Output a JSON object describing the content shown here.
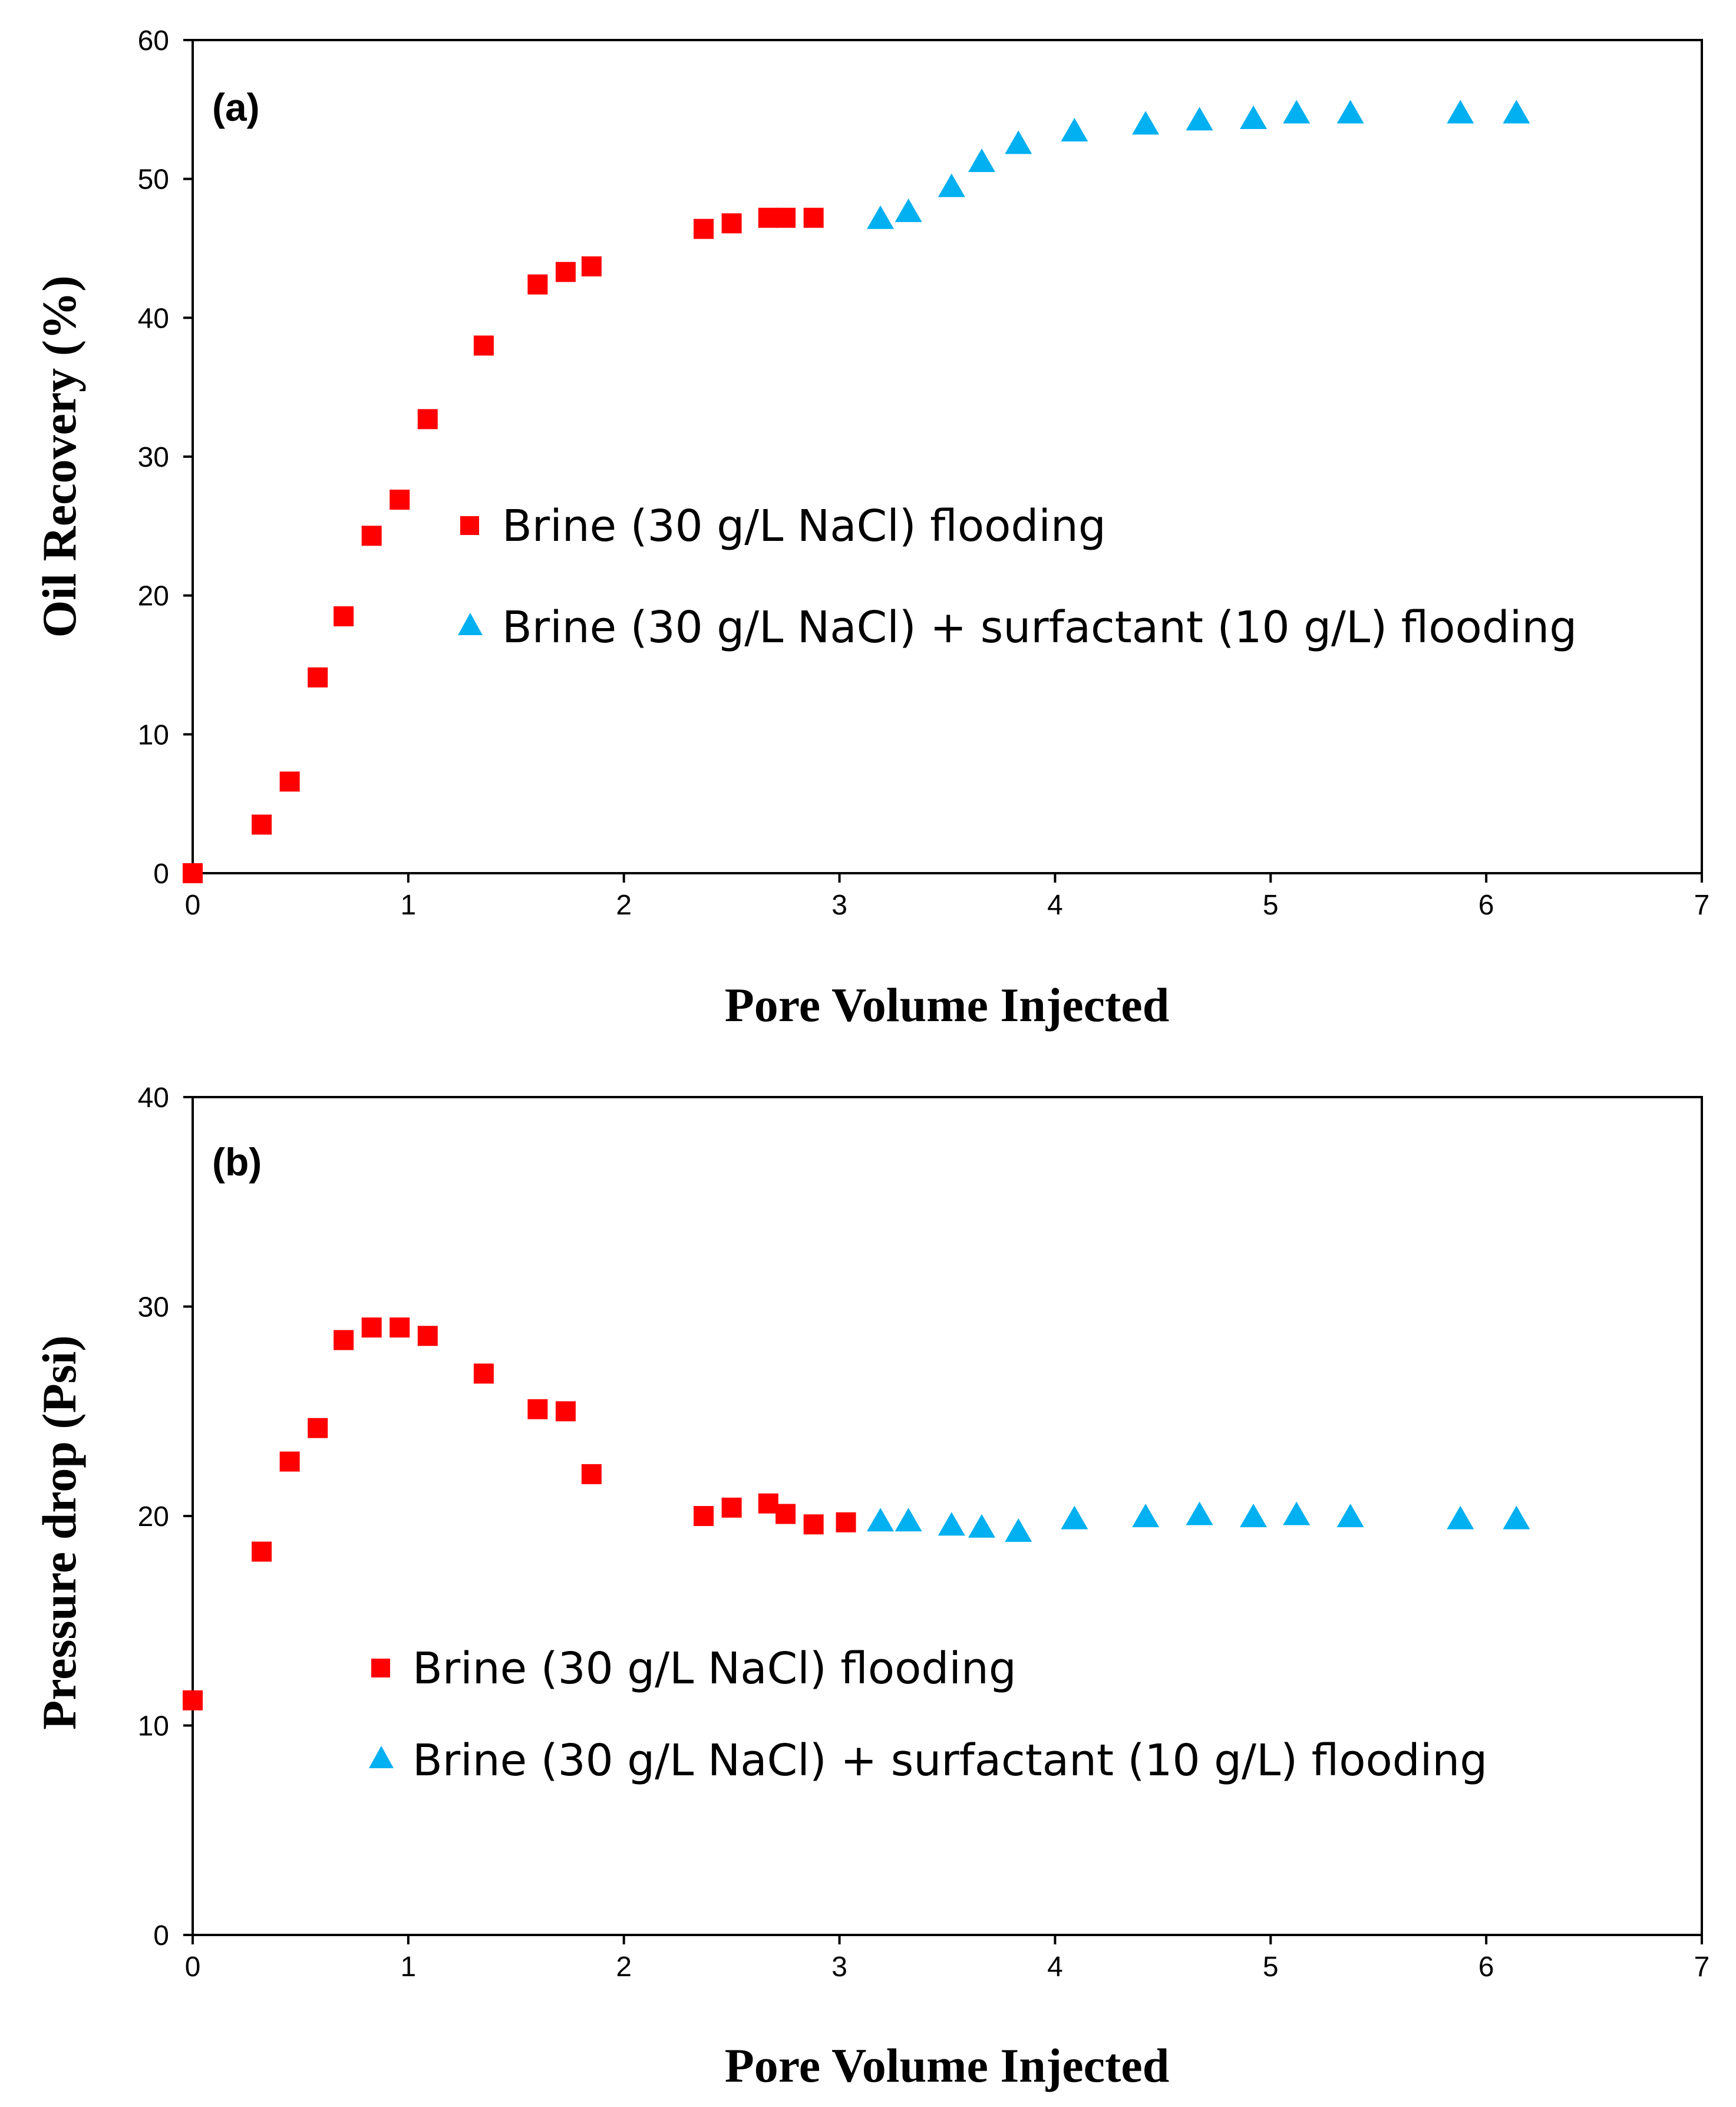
{
  "chart_data": [
    {
      "type": "scatter",
      "panel_label": "(a)",
      "xlabel": "Pore Volume Injected",
      "ylabel": "Oil Recovery (%)",
      "xlim": [
        0,
        7
      ],
      "ylim": [
        0,
        60
      ],
      "x_ticks": [
        0,
        1,
        2,
        3,
        4,
        5,
        6,
        7
      ],
      "y_ticks": [
        0,
        10,
        20,
        30,
        40,
        50,
        60
      ],
      "grid": false,
      "legend_position": "center",
      "series": [
        {
          "name": "Brine (30 g/L NaCl) flooding",
          "marker": "square",
          "color": "#ff0000",
          "x": [
            0,
            0.32,
            0.45,
            0.58,
            0.7,
            0.83,
            0.96,
            1.09,
            1.35,
            1.6,
            1.73,
            1.85,
            2.37,
            2.5,
            2.67,
            2.75,
            2.88
          ],
          "y": [
            0,
            3.5,
            6.6,
            14.1,
            18.5,
            24.3,
            26.9,
            32.7,
            38.0,
            42.4,
            43.3,
            43.7,
            46.4,
            46.8,
            47.2,
            47.2,
            47.2
          ]
        },
        {
          "name": "Brine (30 g/L NaCl) + surfactant (10 g/L) flooding",
          "marker": "triangle",
          "color": "#00b0f0",
          "x": [
            3.19,
            3.32,
            3.52,
            3.66,
            3.83,
            4.09,
            4.42,
            4.67,
            4.92,
            5.12,
            5.37,
            5.88,
            6.14
          ],
          "y": [
            47.2,
            47.7,
            49.5,
            51.3,
            52.6,
            53.5,
            54.0,
            54.3,
            54.4,
            54.8,
            54.8,
            54.8,
            54.8
          ]
        }
      ]
    },
    {
      "type": "scatter",
      "panel_label": "(b)",
      "xlabel": "Pore Volume Injected",
      "ylabel": "Pressure drop (Psi)",
      "xlim": [
        0,
        7
      ],
      "ylim": [
        0,
        40
      ],
      "x_ticks": [
        0,
        1,
        2,
        3,
        4,
        5,
        6,
        7
      ],
      "y_ticks": [
        0,
        10,
        20,
        30,
        40
      ],
      "grid": false,
      "legend_position": "bottom-center",
      "series": [
        {
          "name": "Brine (30 g/L NaCl) flooding",
          "marker": "square",
          "color": "#ff0000",
          "x": [
            0,
            0.32,
            0.45,
            0.58,
            0.7,
            0.83,
            0.96,
            1.09,
            1.35,
            1.6,
            1.73,
            1.85,
            2.37,
            2.5,
            2.67,
            2.75,
            2.88,
            3.03
          ],
          "y": [
            11.2,
            18.3,
            22.6,
            24.2,
            28.4,
            29.0,
            29.0,
            28.6,
            26.8,
            25.1,
            25.0,
            22.0,
            20.0,
            20.4,
            20.6,
            20.1,
            19.6,
            19.7
          ]
        },
        {
          "name": "Brine (30 g/L NaCl) + surfactant (10 g/L) flooding",
          "marker": "triangle",
          "color": "#00b0f0",
          "x": [
            3.19,
            3.32,
            3.52,
            3.66,
            3.83,
            4.09,
            4.42,
            4.67,
            4.92,
            5.12,
            5.37,
            5.88,
            6.14
          ],
          "y": [
            19.8,
            19.8,
            19.6,
            19.5,
            19.3,
            19.9,
            20.0,
            20.1,
            20.0,
            20.1,
            20.0,
            19.9,
            19.9
          ]
        }
      ]
    }
  ]
}
